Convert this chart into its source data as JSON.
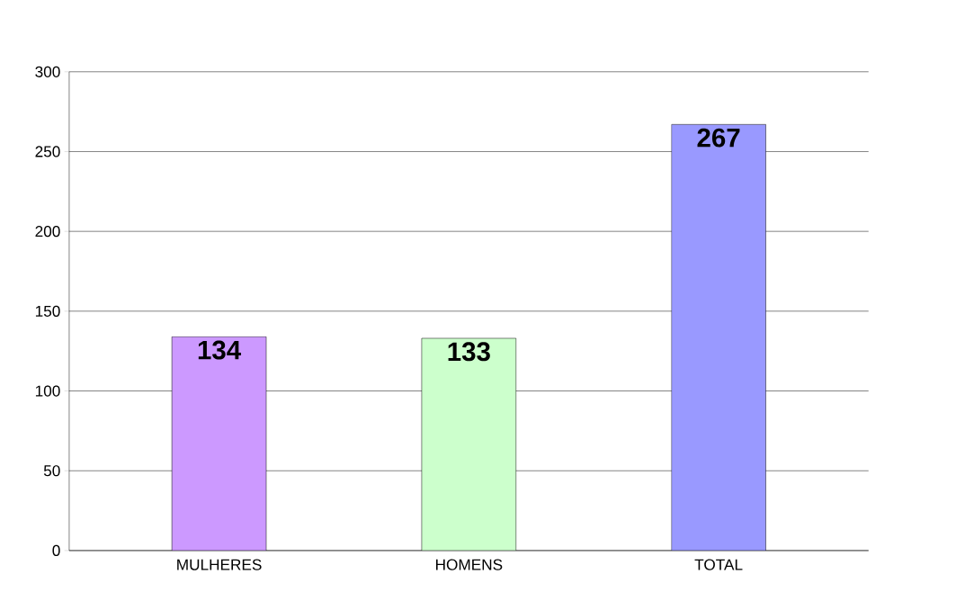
{
  "chart_data": {
    "type": "bar",
    "categories": [
      "MULHERES",
      "HOMENS",
      "TOTAL"
    ],
    "values": [
      134,
      133,
      267
    ],
    "colors": [
      "#cc99ff",
      "#ccffcc",
      "#9999ff"
    ],
    "ylim": [
      0,
      300
    ],
    "yticks": [
      0,
      50,
      100,
      150,
      200,
      250,
      300
    ],
    "grid": "y",
    "data_labels": true
  }
}
